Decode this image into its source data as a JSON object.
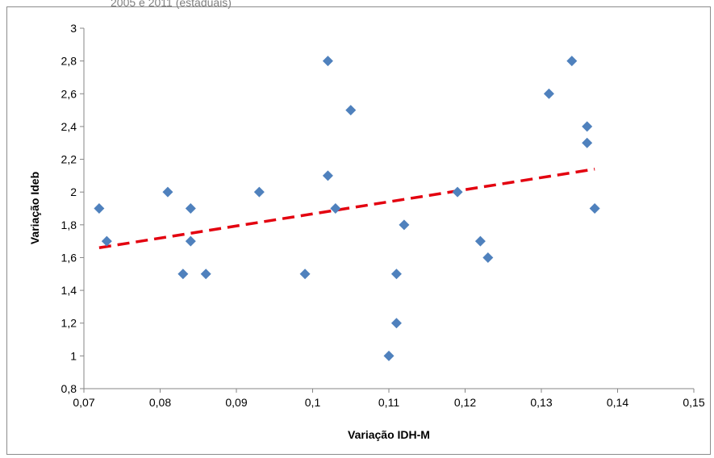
{
  "chart_data": {
    "type": "scatter",
    "title": "",
    "partial_title_text": "2005 e 2011 (estaduais)",
    "xlabel": "Variação IDH-M",
    "ylabel": "Variação Ideb",
    "xlim": [
      0.07,
      0.15
    ],
    "ylim": [
      0.8,
      3.0
    ],
    "xticks": [
      0.07,
      0.08,
      0.09,
      0.1,
      0.11,
      0.12,
      0.13,
      0.14,
      0.15
    ],
    "xtick_labels": [
      "0,07",
      "0,08",
      "0,09",
      "0,1",
      "0,11",
      "0,12",
      "0,13",
      "0,14",
      "0,15"
    ],
    "yticks": [
      0.8,
      1.0,
      1.2,
      1.4,
      1.6,
      1.8,
      2.0,
      2.2,
      2.4,
      2.6,
      2.8,
      3.0
    ],
    "ytick_labels": [
      "0,8",
      "1",
      "1,2",
      "1,4",
      "1,6",
      "1,8",
      "2",
      "2,2",
      "2,4",
      "2,6",
      "2,8",
      "3"
    ],
    "grid": false,
    "marker_color": "#4f81bd",
    "trendline_color": "#e3000f",
    "series": [
      {
        "points": [
          [
            0.072,
            1.9
          ],
          [
            0.073,
            1.7
          ],
          [
            0.081,
            2.0
          ],
          [
            0.083,
            1.5
          ],
          [
            0.084,
            1.9
          ],
          [
            0.084,
            1.7
          ],
          [
            0.086,
            1.5
          ],
          [
            0.093,
            2.0
          ],
          [
            0.099,
            1.5
          ],
          [
            0.102,
            2.8
          ],
          [
            0.102,
            2.1
          ],
          [
            0.103,
            1.9
          ],
          [
            0.105,
            2.5
          ],
          [
            0.11,
            1.0
          ],
          [
            0.111,
            1.5
          ],
          [
            0.111,
            1.2
          ],
          [
            0.112,
            1.8
          ],
          [
            0.119,
            2.0
          ],
          [
            0.122,
            1.7
          ],
          [
            0.123,
            1.6
          ],
          [
            0.131,
            2.6
          ],
          [
            0.134,
            2.8
          ],
          [
            0.136,
            2.4
          ],
          [
            0.136,
            2.3
          ],
          [
            0.137,
            1.9
          ]
        ]
      }
    ],
    "trendline": {
      "style": "dashed",
      "from": [
        0.072,
        1.66
      ],
      "to": [
        0.137,
        2.14
      ]
    }
  }
}
